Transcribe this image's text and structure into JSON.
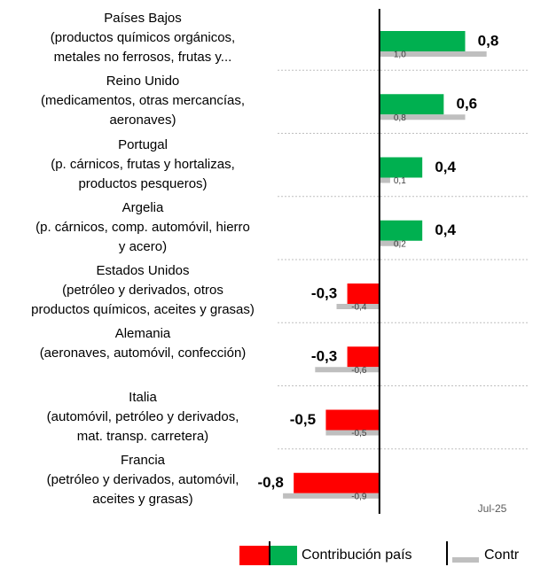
{
  "chart_data": {
    "type": "hbar",
    "categories": [
      "Países Bajos\n(productos químicos orgánicos,\nmetales no ferrosos, frutas y...",
      "Reino Unido\n(medicamentos, otras mercancías,\naeronaves)",
      "Portugal\n(p. cárnicos, frutas y hortalizas,\nproductos pesqueros)",
      "Argelia\n(p. cárnicos, comp. automóvil, hierro\ny acero)",
      "Estados Unidos\n(petróleo y derivados, otros\nproductos químicos, aceites y grasas)",
      "Alemania\n(aeronaves, automóvil, confección)",
      "Italia\n(automóvil, petróleo y derivados,\nmat. transp. carretera)",
      "Francia\n(petróleo y derivados, automóvil,\naceites y grasas)"
    ],
    "series": [
      {
        "name": "Contribución país",
        "color": "#00b050",
        "negative_color": "#ff0000",
        "values": [
          0.8,
          0.6,
          0.4,
          0.4,
          -0.3,
          -0.3,
          -0.5,
          -0.8
        ],
        "value_labels": [
          "0,8",
          "0,6",
          "0,4",
          "0,4",
          "-0,3",
          "-0,3",
          "-0,5",
          "-0,8"
        ]
      },
      {
        "name": "Contr",
        "color": "#bfbfbf",
        "values": [
          1.0,
          0.8,
          0.1,
          0.2,
          -0.4,
          -0.6,
          -0.5,
          -0.9
        ],
        "value_labels": [
          "1,0",
          "0,8",
          "0,1",
          "0,2",
          "-0,4",
          "-0,6",
          "-0,5",
          "-0,9"
        ]
      }
    ],
    "xlim": [
      -1,
      1.4
    ],
    "annotation": "Jul-25"
  }
}
